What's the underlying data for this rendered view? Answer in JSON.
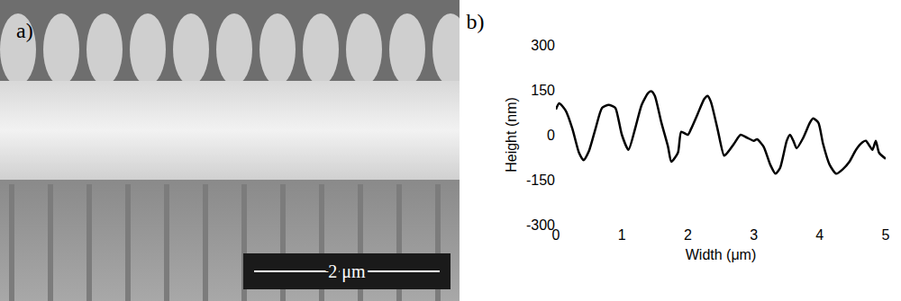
{
  "image_panel": {
    "label": "a)",
    "scale_bar": "2 μm"
  },
  "chart_data": {
    "type": "line",
    "title": "b)",
    "x_label": "Width (μm)",
    "y_label": "Height (nm)",
    "color": "#000000",
    "grid": false,
    "xlim": [
      0,
      5
    ],
    "xticks": [
      0,
      1,
      2,
      3,
      4,
      5
    ],
    "ylim": [
      -300,
      300
    ],
    "yticks": [
      -300,
      -150,
      0,
      150,
      300
    ],
    "x": [
      0.0,
      0.05,
      0.15,
      0.25,
      0.35,
      0.42,
      0.5,
      0.6,
      0.7,
      0.8,
      0.9,
      0.95,
      1.0,
      1.1,
      1.2,
      1.3,
      1.4,
      1.45,
      1.5,
      1.6,
      1.7,
      1.75,
      1.85,
      1.9,
      2.0,
      2.05,
      2.15,
      2.25,
      2.3,
      2.35,
      2.45,
      2.55,
      2.6,
      2.7,
      2.8,
      2.9,
      3.0,
      3.05,
      3.15,
      3.25,
      3.33,
      3.4,
      3.5,
      3.55,
      3.6,
      3.65,
      3.75,
      3.85,
      3.9,
      3.98,
      4.05,
      4.15,
      4.25,
      4.35,
      4.45,
      4.55,
      4.65,
      4.7,
      4.75,
      4.8,
      4.85,
      4.9,
      5.0
    ],
    "values": [
      85,
      105,
      80,
      20,
      -60,
      -85,
      -55,
      20,
      90,
      100,
      90,
      50,
      0,
      -50,
      20,
      100,
      140,
      145,
      130,
      40,
      -40,
      -90,
      -60,
      10,
      0,
      20,
      70,
      120,
      130,
      110,
      20,
      -70,
      -60,
      -30,
      0,
      -10,
      -20,
      -15,
      -40,
      -100,
      -130,
      -110,
      -20,
      0,
      -20,
      -45,
      -10,
      40,
      55,
      40,
      -30,
      -100,
      -130,
      -115,
      -90,
      -50,
      -25,
      -20,
      -35,
      -50,
      -20,
      -60,
      -80
    ]
  }
}
